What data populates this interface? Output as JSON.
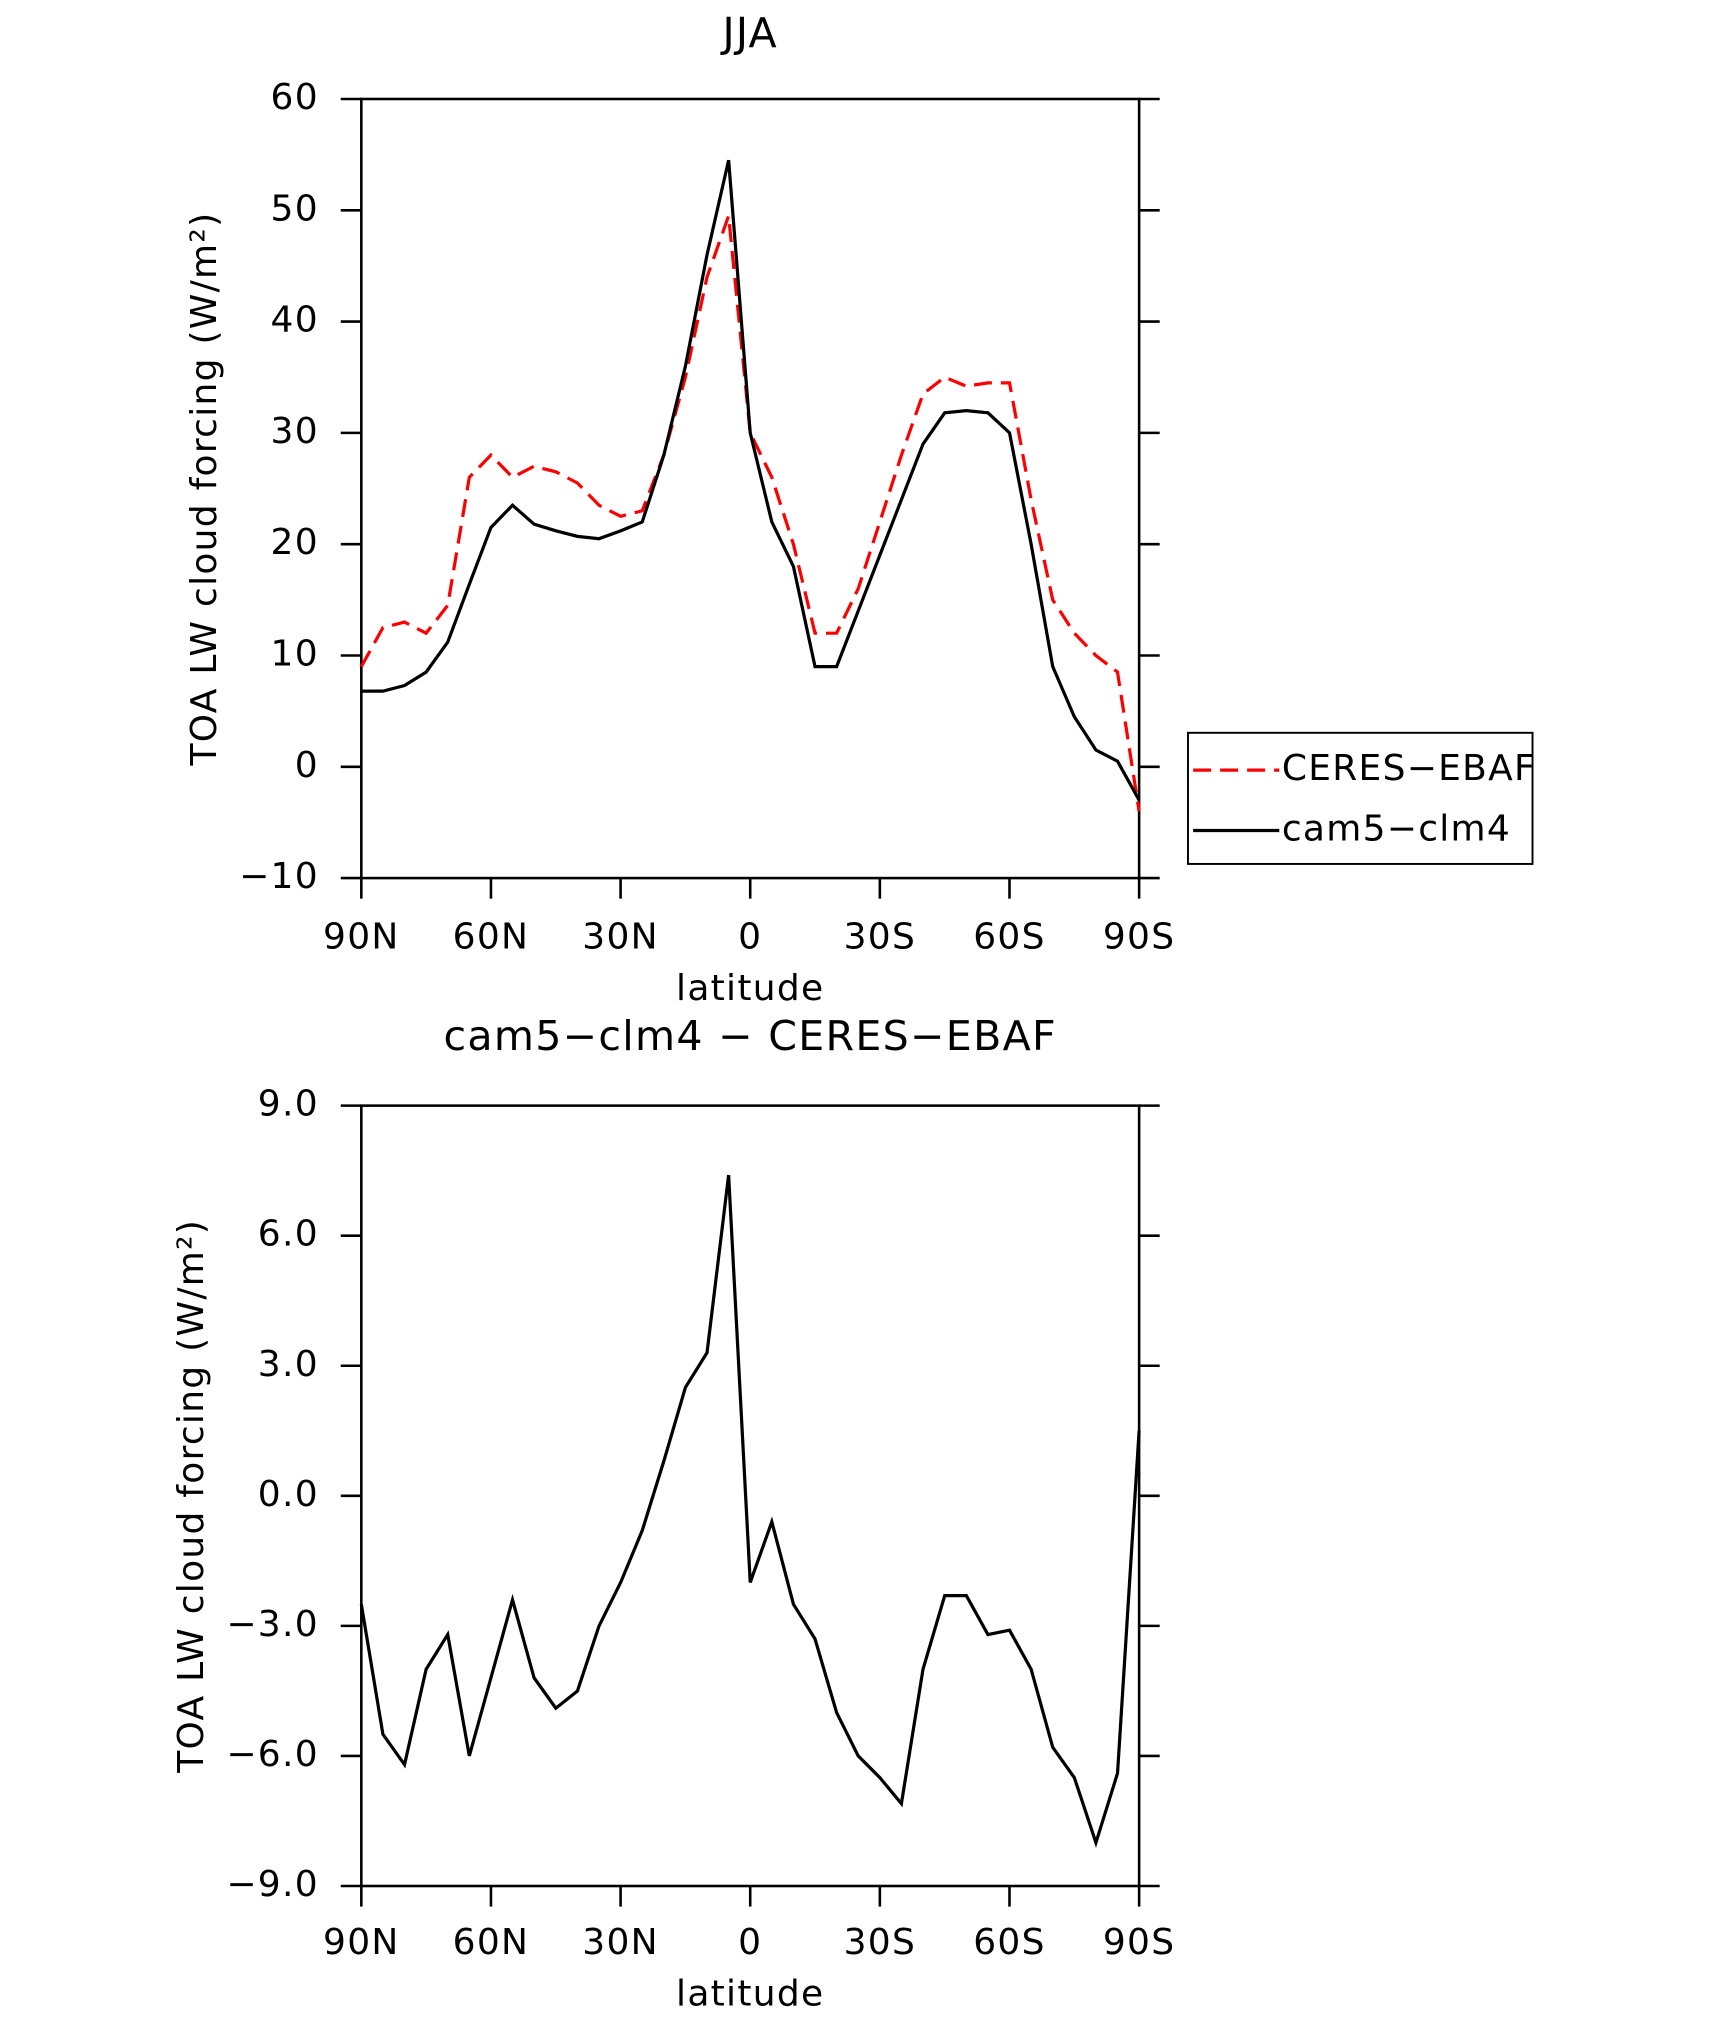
{
  "chart_data": [
    {
      "type": "line",
      "title": "JJA",
      "xlabel": "latitude",
      "ylabel": "TOA LW cloud forcing (W/m²)",
      "x": [
        90,
        85,
        80,
        75,
        70,
        65,
        60,
        55,
        50,
        45,
        40,
        35,
        30,
        25,
        20,
        15,
        10,
        5,
        0,
        -5,
        -10,
        -15,
        -20,
        -25,
        -30,
        -35,
        -40,
        -45,
        -50,
        -55,
        -60,
        -65,
        -70,
        -75,
        -80,
        -85,
        -90
      ],
      "xlim": [
        90,
        -90
      ],
      "xticks": [
        {
          "value": 90,
          "label": "90N"
        },
        {
          "value": 60,
          "label": "60N"
        },
        {
          "value": 30,
          "label": "30N"
        },
        0,
        {
          "value": -30,
          "label": "30S"
        },
        {
          "value": -60,
          "label": "60S"
        },
        {
          "value": -90,
          "label": "90S"
        }
      ],
      "ylim": [
        -10,
        60
      ],
      "yticks": [
        {
          "value": -10,
          "label": "−10"
        },
        0,
        10,
        20,
        30,
        40,
        50,
        60
      ],
      "legend": "right",
      "series": [
        {
          "name": "CERES−EBAF",
          "color": "#ff0000",
          "line_style": "dashed",
          "values": [
            9,
            12.5,
            13,
            12,
            14.5,
            26,
            28,
            26,
            27,
            26.5,
            25.5,
            23.5,
            22.5,
            23,
            28,
            35,
            44,
            49.5,
            30,
            26,
            20,
            12,
            12,
            16,
            22,
            28,
            33.5,
            35,
            34.2,
            34.5,
            34.5,
            24,
            15,
            12,
            10,
            8.5,
            -4
          ]
        },
        {
          "name": "cam5−clm4",
          "color": "#000000",
          "line_style": "solid",
          "values": [
            6.8,
            6.8,
            7.3,
            8.5,
            11.2,
            16.4,
            21.5,
            23.5,
            21.8,
            21.2,
            20.7,
            20.5,
            21.2,
            22,
            28,
            36,
            46,
            54.5,
            30,
            22,
            18,
            9,
            9,
            14,
            19,
            24,
            29,
            31.8,
            32,
            31.8,
            30,
            20,
            9,
            4.5,
            1.5,
            0.5,
            -3
          ]
        }
      ]
    },
    {
      "type": "line",
      "title": "cam5−clm4 − CERES−EBAF",
      "xlabel": "latitude",
      "ylabel": "TOA LW cloud forcing (W/m²)",
      "x": [
        90,
        85,
        80,
        75,
        70,
        65,
        60,
        55,
        50,
        45,
        40,
        35,
        30,
        25,
        20,
        15,
        10,
        5,
        0,
        -5,
        -10,
        -15,
        -20,
        -25,
        -30,
        -35,
        -40,
        -45,
        -50,
        -55,
        -60,
        -65,
        -70,
        -75,
        -80,
        -85,
        -90
      ],
      "xlim": [
        90,
        -90
      ],
      "xticks": [
        {
          "value": 90,
          "label": "90N"
        },
        {
          "value": 60,
          "label": "60N"
        },
        {
          "value": 30,
          "label": "30N"
        },
        0,
        {
          "value": -30,
          "label": "30S"
        },
        {
          "value": -60,
          "label": "60S"
        },
        {
          "value": -90,
          "label": "90S"
        }
      ],
      "ylim": [
        -9,
        9
      ],
      "yticks": [
        {
          "value": -9,
          "label": "−9.0"
        },
        {
          "value": -6,
          "label": "−6.0"
        },
        {
          "value": -3,
          "label": "−3.0"
        },
        {
          "value": 0,
          "label": "0.0"
        },
        {
          "value": 3,
          "label": "3.0"
        },
        {
          "value": 6,
          "label": "6.0"
        },
        {
          "value": 9,
          "label": "9.0"
        }
      ],
      "series": [
        {
          "color": "#000000",
          "line_style": "solid",
          "values": [
            -2.5,
            -5.5,
            -6.2,
            -4,
            -3.2,
            -6,
            -4.2,
            -2.4,
            -4.2,
            -4.9,
            -4.5,
            -3,
            -2,
            -0.8,
            0.8,
            2.5,
            3.3,
            7.4,
            -2,
            -0.6,
            -2.5,
            -3.3,
            -5,
            -6,
            -6.5,
            -7.1,
            -4,
            -2.3,
            -2.3,
            -3.2,
            -3.1,
            -4,
            -5.8,
            -6.5,
            -8,
            -6.4,
            1.5
          ]
        }
      ]
    }
  ]
}
